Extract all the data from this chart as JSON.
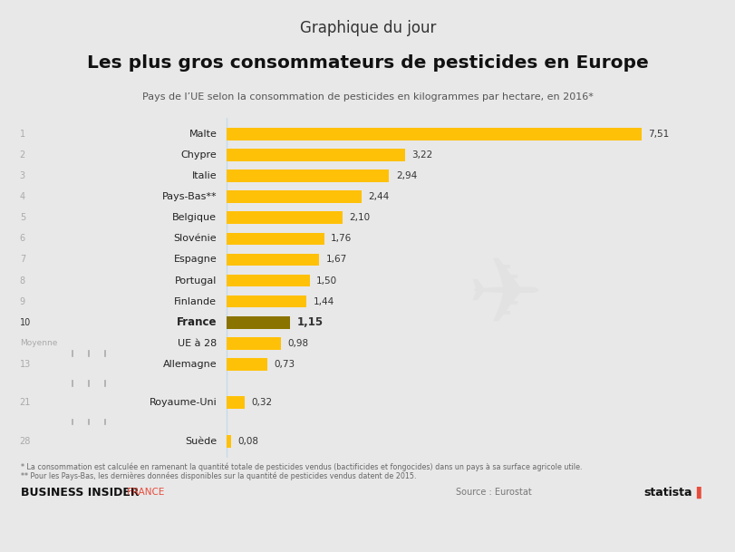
{
  "header_title": "Graphique du jour",
  "main_title": "Les plus gros consommateurs de pesticides en Europe",
  "subtitle": "Pays de l’UE selon la consommation de pesticides en kilogrammes par hectare, en 2016*",
  "footnote1": "* La consommation est calculée en ramenant la quantité totale de pesticides vendus (bactificides et fongocides) dans un pays à sa surface agricole utile.",
  "footnote2": "** Pour les Pays-Bas, les dernières données disponibles sur la quantité de pesticides vendus datent de 2015.",
  "rows": [
    {
      "rank": "1",
      "label": "Malte",
      "value": 7.51,
      "bold": false,
      "rank_gray": true,
      "gap_before": false
    },
    {
      "rank": "2",
      "label": "Chypre",
      "value": 3.22,
      "bold": false,
      "rank_gray": true,
      "gap_before": false
    },
    {
      "rank": "3",
      "label": "Italie",
      "value": 2.94,
      "bold": false,
      "rank_gray": true,
      "gap_before": false
    },
    {
      "rank": "4",
      "label": "Pays-Bas**",
      "value": 2.44,
      "bold": false,
      "rank_gray": true,
      "gap_before": false
    },
    {
      "rank": "5",
      "label": "Belgique",
      "value": 2.1,
      "bold": false,
      "rank_gray": true,
      "gap_before": false
    },
    {
      "rank": "6",
      "label": "Slovénie",
      "value": 1.76,
      "bold": false,
      "rank_gray": true,
      "gap_before": false
    },
    {
      "rank": "7",
      "label": "Espagne",
      "value": 1.67,
      "bold": false,
      "rank_gray": true,
      "gap_before": false
    },
    {
      "rank": "8",
      "label": "Portugal",
      "value": 1.5,
      "bold": false,
      "rank_gray": true,
      "gap_before": false
    },
    {
      "rank": "9",
      "label": "Finlande",
      "value": 1.44,
      "bold": false,
      "rank_gray": true,
      "gap_before": false
    },
    {
      "rank": "10",
      "label": "France",
      "value": 1.15,
      "bold": true,
      "rank_gray": false,
      "gap_before": false
    },
    {
      "rank": "Moyenne",
      "label": "UE à 28",
      "value": 0.98,
      "bold": false,
      "rank_gray": true,
      "gap_before": false
    },
    {
      "rank": "13",
      "label": "Allemagne",
      "value": 0.73,
      "bold": false,
      "rank_gray": true,
      "gap_before": true
    },
    {
      "rank": "21",
      "label": "Royaume-Uni",
      "value": 0.32,
      "bold": false,
      "rank_gray": true,
      "gap_before": true
    },
    {
      "rank": "28",
      "label": "Suède",
      "value": 0.08,
      "bold": false,
      "rank_gray": true,
      "gap_before": true
    }
  ],
  "bar_color_normal": "#FFC107",
  "bar_color_france": "#8B7300",
  "outer_bg": "#e8e8e8",
  "inner_bg": "#ffffff",
  "header_bg": "#d8d8d8",
  "max_value": 7.51
}
